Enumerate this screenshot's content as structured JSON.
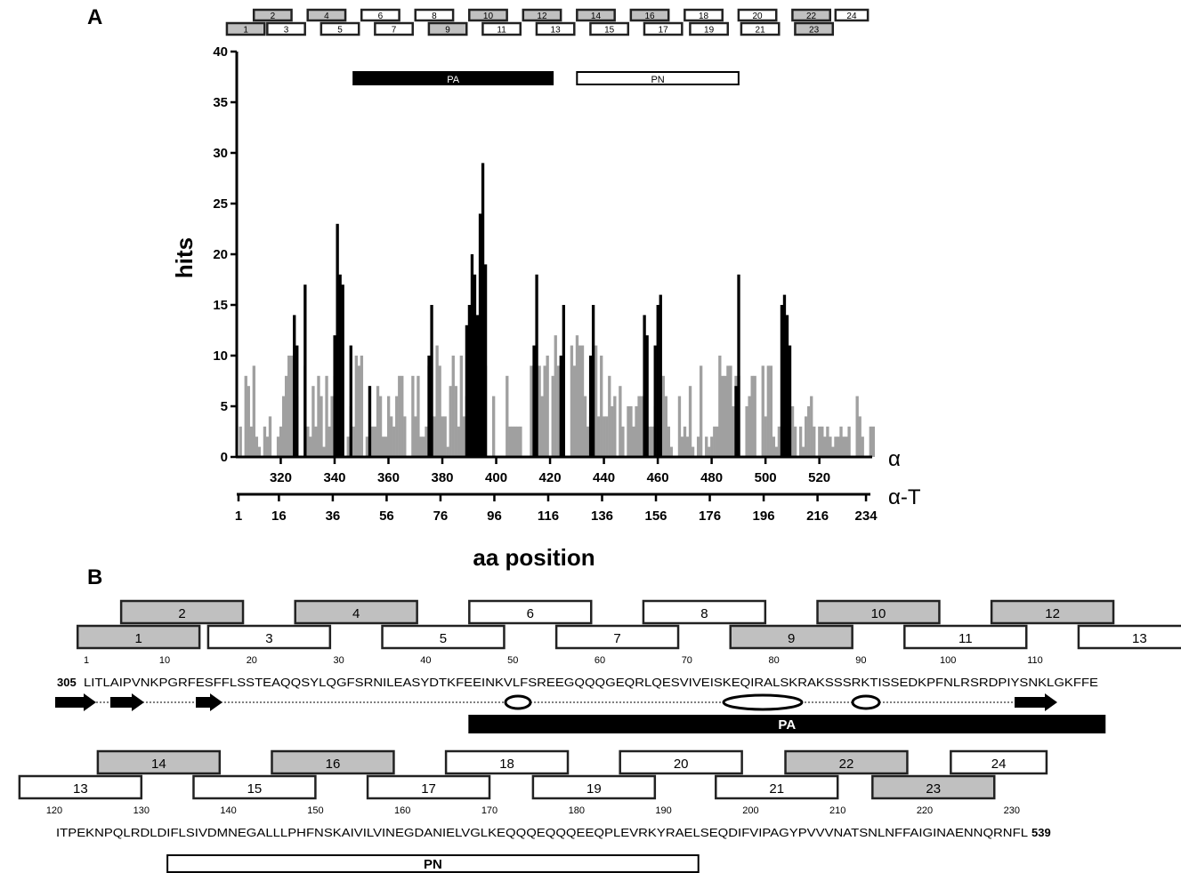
{
  "panels": {
    "a": "A",
    "b": "B"
  },
  "colors": {
    "gray": "#a0a0a0",
    "black": "#000000",
    "shaded_box": "#c0c0c0"
  },
  "chart_data": {
    "type": "bar",
    "ylabel": "hits",
    "xlabel": "aa position",
    "ylim": [
      0,
      40
    ],
    "yticks": [
      "0",
      "5",
      "10",
      "15",
      "20",
      "25",
      "30",
      "35",
      "40"
    ],
    "x_axis_alpha": {
      "label": "α",
      "ticks": [
        "320",
        "340",
        "360",
        "380",
        "400",
        "420",
        "440",
        "460",
        "480",
        "500",
        "520"
      ],
      "values": [
        320,
        340,
        360,
        380,
        400,
        420,
        440,
        460,
        480,
        500,
        520
      ]
    },
    "x_axis_alpha_t": {
      "label": "α-T",
      "ticks": [
        "1",
        "16",
        "36",
        "56",
        "76",
        "96",
        "116",
        "136",
        "156",
        "176",
        "196",
        "216",
        "234"
      ],
      "values": [
        1,
        16,
        36,
        56,
        76,
        96,
        116,
        136,
        156,
        176,
        196,
        216,
        234
      ]
    },
    "xrange": [
      305,
      539
    ],
    "series": [
      {
        "color": "#a0a0a0",
        "values": [
          3,
          0,
          8,
          7,
          3,
          9,
          2,
          1,
          0,
          3,
          2,
          4,
          0,
          0,
          2,
          3,
          6,
          8,
          10,
          10,
          9,
          6,
          0,
          0,
          9,
          3,
          2,
          7,
          3,
          8,
          6,
          1,
          8,
          3,
          6,
          8,
          3,
          0,
          0,
          0,
          2,
          5,
          3,
          10,
          9,
          10,
          0,
          2,
          7,
          3,
          3,
          7,
          6,
          2,
          2,
          6,
          4,
          3,
          6,
          8,
          8,
          4,
          0,
          0,
          8,
          4,
          8,
          2,
          2,
          3,
          9,
          2,
          4,
          11,
          9,
          4,
          4,
          1,
          7,
          10,
          7,
          3,
          10,
          4,
          6,
          5,
          5,
          5,
          0,
          7,
          6,
          9,
          0,
          0,
          6,
          0,
          0,
          0,
          0,
          8,
          3,
          3,
          3,
          3,
          3,
          0,
          0,
          0,
          9,
          9,
          8,
          9,
          6,
          9,
          10,
          0,
          8,
          12,
          9,
          0,
          0,
          0,
          0,
          11,
          9,
          12,
          11,
          11,
          6,
          3,
          4,
          10,
          11,
          4,
          10,
          4,
          4,
          8,
          5,
          6,
          0,
          7,
          3,
          0,
          5,
          5,
          3,
          5,
          6,
          6,
          4,
          2,
          3,
          3,
          5,
          3,
          7,
          8,
          6,
          3,
          1,
          0,
          0,
          6,
          2,
          3,
          2,
          7,
          1,
          0,
          2,
          9,
          0,
          2,
          1,
          2,
          3,
          3,
          10,
          8,
          8,
          9,
          9,
          5,
          8,
          8,
          0,
          0,
          5,
          6,
          8,
          8,
          0,
          0,
          9,
          4,
          9,
          9,
          2,
          1,
          3,
          3,
          4,
          3,
          0,
          5,
          3,
          0,
          3,
          1,
          4,
          5,
          6,
          3,
          0,
          3,
          3,
          2,
          3,
          2,
          1,
          2,
          2,
          3,
          2,
          2,
          3,
          0,
          0,
          6,
          4,
          2,
          0,
          0,
          3,
          3,
          0
        ]
      },
      {
        "color": "#000000",
        "values": [
          [
            325,
            14
          ],
          [
            326,
            11
          ],
          [
            329,
            17
          ],
          [
            340,
            12
          ],
          [
            341,
            23
          ],
          [
            342,
            18
          ],
          [
            343,
            17
          ],
          [
            346,
            11
          ],
          [
            353,
            7
          ],
          [
            375,
            10
          ],
          [
            376,
            15
          ],
          [
            389,
            13
          ],
          [
            390,
            15
          ],
          [
            391,
            20
          ],
          [
            392,
            18
          ],
          [
            393,
            14
          ],
          [
            394,
            24
          ],
          [
            395,
            29
          ],
          [
            396,
            19
          ],
          [
            414,
            11
          ],
          [
            415,
            18
          ],
          [
            424,
            10
          ],
          [
            425,
            15
          ],
          [
            435,
            10
          ],
          [
            436,
            15
          ],
          [
            455,
            14
          ],
          [
            456,
            12
          ],
          [
            459,
            11
          ],
          [
            460,
            15
          ],
          [
            461,
            16
          ],
          [
            489,
            7
          ],
          [
            490,
            18
          ],
          [
            506,
            15
          ],
          [
            507,
            16
          ],
          [
            508,
            14
          ],
          [
            509,
            11
          ]
        ]
      }
    ],
    "domain_bars": [
      {
        "label": "PA",
        "start": 347,
        "end": 421,
        "fill": "#000000"
      },
      {
        "label": "PN",
        "start": 430,
        "end": 490,
        "fill": "#ffffff"
      }
    ],
    "peptides_top": [
      {
        "id": "2",
        "s": 310,
        "e": 324,
        "shade": true
      },
      {
        "id": "4",
        "s": 330,
        "e": 344,
        "shade": true
      },
      {
        "id": "6",
        "s": 350,
        "e": 364,
        "shade": false
      },
      {
        "id": "8",
        "s": 370,
        "e": 384,
        "shade": false
      },
      {
        "id": "10",
        "s": 390,
        "e": 404,
        "shade": true
      },
      {
        "id": "12",
        "s": 410,
        "e": 424,
        "shade": true
      },
      {
        "id": "14",
        "s": 430,
        "e": 444,
        "shade": true
      },
      {
        "id": "16",
        "s": 450,
        "e": 464,
        "shade": true
      },
      {
        "id": "18",
        "s": 470,
        "e": 484,
        "shade": false
      },
      {
        "id": "20",
        "s": 490,
        "e": 504,
        "shade": false
      },
      {
        "id": "22",
        "s": 510,
        "e": 524,
        "shade": true
      },
      {
        "id": "24",
        "s": 526,
        "e": 538,
        "shade": false
      }
    ],
    "peptides_bottom": [
      {
        "id": "1",
        "s": 300,
        "e": 314,
        "shade": true
      },
      {
        "id": "3",
        "s": 315,
        "e": 329,
        "shade": false
      },
      {
        "id": "5",
        "s": 335,
        "e": 349,
        "shade": false
      },
      {
        "id": "7",
        "s": 355,
        "e": 369,
        "shade": false
      },
      {
        "id": "9",
        "s": 375,
        "e": 389,
        "shade": true
      },
      {
        "id": "11",
        "s": 395,
        "e": 409,
        "shade": false
      },
      {
        "id": "13",
        "s": 415,
        "e": 429,
        "shade": false
      },
      {
        "id": "15",
        "s": 435,
        "e": 449,
        "shade": false
      },
      {
        "id": "17",
        "s": 455,
        "e": 469,
        "shade": false
      },
      {
        "id": "19",
        "s": 472,
        "e": 486,
        "shade": false
      },
      {
        "id": "21",
        "s": 491,
        "e": 505,
        "shade": false
      },
      {
        "id": "23",
        "s": 511,
        "e": 525,
        "shade": true
      }
    ]
  },
  "sequence_map": {
    "row1": {
      "start_label": "305",
      "sequence": "LITLAIPVNKPGRFESFFLSSTEAQQSYLQGFSRNILEASYDTKFEEINKVLFSREEGQQQGEQRLQESVIVEISKEQIRALSKRAKSSSRKTISSEDKPFNLRSRDPIYSNKLGKFFE",
      "ticks": [
        "1",
        "10",
        "20",
        "30",
        "40",
        "50",
        "60",
        "70",
        "80",
        "90",
        "100",
        "110"
      ],
      "tick_values": [
        1,
        10,
        20,
        30,
        40,
        50,
        60,
        70,
        80,
        90,
        100,
        110
      ],
      "top_boxes": [
        {
          "id": "2",
          "s": 5,
          "e": 19,
          "shade": true
        },
        {
          "id": "4",
          "s": 25,
          "e": 39,
          "shade": true
        },
        {
          "id": "6",
          "s": 45,
          "e": 59,
          "shade": false
        },
        {
          "id": "8",
          "s": 65,
          "e": 79,
          "shade": false
        },
        {
          "id": "10",
          "s": 85,
          "e": 99,
          "shade": true
        },
        {
          "id": "12",
          "s": 105,
          "e": 119,
          "shade": true
        }
      ],
      "bottom_boxes": [
        {
          "id": "1",
          "s": 0,
          "e": 14,
          "shade": true
        },
        {
          "id": "3",
          "s": 15,
          "e": 29,
          "shade": false
        },
        {
          "id": "5",
          "s": 35,
          "e": 49,
          "shade": false
        },
        {
          "id": "7",
          "s": 55,
          "e": 69,
          "shade": false
        },
        {
          "id": "9",
          "s": 75,
          "e": 89,
          "shade": true
        },
        {
          "id": "11",
          "s": 95,
          "e": 109,
          "shade": false
        },
        {
          "id": "13",
          "s": 115,
          "e": 129,
          "shade": false
        }
      ],
      "domain": {
        "label": "PA",
        "s": 45,
        "e": 118
      }
    },
    "row2": {
      "end_label": "539",
      "sequence": "ITPEKNPQLRDLDIFLSIVDMNEGALLLPHFNSKAIVILVINEGDANIELVGLKEQQQEQQQEEQPLEVRKYRAELSEQDIFVIPAGYPVVVNATSNLNFFAIGINAENNQRNFL",
      "ticks": [
        "120",
        "130",
        "140",
        "150",
        "160",
        "170",
        "180",
        "190",
        "200",
        "210",
        "220",
        "230"
      ],
      "tick_values": [
        120,
        130,
        140,
        150,
        160,
        170,
        180,
        190,
        200,
        210,
        220,
        230
      ],
      "top_boxes": [
        {
          "id": "14",
          "s": 125,
          "e": 139,
          "shade": true
        },
        {
          "id": "16",
          "s": 145,
          "e": 159,
          "shade": true
        },
        {
          "id": "18",
          "s": 165,
          "e": 179,
          "shade": false
        },
        {
          "id": "20",
          "s": 185,
          "e": 199,
          "shade": false
        },
        {
          "id": "22",
          "s": 204,
          "e": 218,
          "shade": true
        },
        {
          "id": "24",
          "s": 223,
          "e": 234,
          "shade": false
        }
      ],
      "bottom_boxes": [
        {
          "id": "13",
          "s": 116,
          "e": 130,
          "shade": false
        },
        {
          "id": "15",
          "s": 136,
          "e": 150,
          "shade": false
        },
        {
          "id": "17",
          "s": 156,
          "e": 170,
          "shade": false
        },
        {
          "id": "19",
          "s": 175,
          "e": 189,
          "shade": false
        },
        {
          "id": "21",
          "s": 196,
          "e": 210,
          "shade": false
        },
        {
          "id": "23",
          "s": 214,
          "e": 228,
          "shade": true
        }
      ],
      "domain": {
        "label": "PN",
        "s": 133,
        "e": 194
      }
    }
  }
}
